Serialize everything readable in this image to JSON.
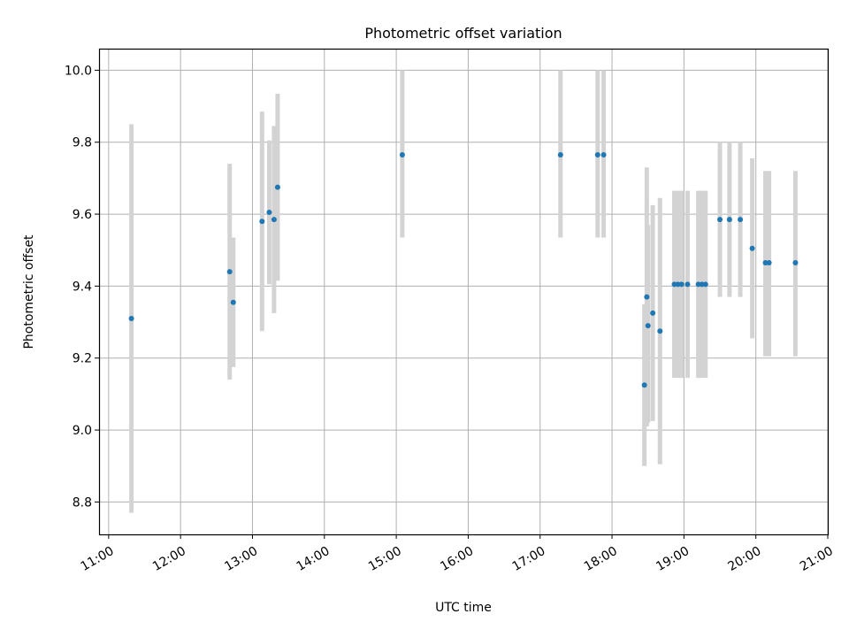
{
  "chart_data": {
    "type": "scatter",
    "title": "Photometric offset variation",
    "xlabel": "UTC time",
    "ylabel": "Photometric offset",
    "x_ticks": [
      "11:00",
      "12:00",
      "13:00",
      "14:00",
      "15:00",
      "16:00",
      "17:00",
      "18:00",
      "19:00",
      "20:00",
      "21:00"
    ],
    "y_ticks": [
      "8.8",
      "9.0",
      "9.2",
      "9.4",
      "9.6",
      "9.8",
      "10.0"
    ],
    "xlim": [
      "10:52",
      "21:00"
    ],
    "ylim": [
      8.71,
      10.06
    ],
    "grid": true,
    "legend": "none",
    "colors": {
      "point": "#1f77b4",
      "errorbar": "#d3d3d3",
      "grid": "#b0b0b0"
    },
    "series": [
      {
        "points": [
          {
            "x": "11:19",
            "y": 9.31,
            "low": 8.77,
            "high": 9.85
          },
          {
            "x": "12:41",
            "y": 9.44,
            "low": 9.14,
            "high": 9.74
          },
          {
            "x": "12:44",
            "y": 9.355,
            "low": 9.175,
            "high": 9.535
          },
          {
            "x": "13:08",
            "y": 9.58,
            "low": 9.275,
            "high": 9.885
          },
          {
            "x": "13:14",
            "y": 9.605,
            "low": 9.405,
            "high": 9.805
          },
          {
            "x": "13:18",
            "y": 9.585,
            "low": 9.325,
            "high": 9.845
          },
          {
            "x": "13:21",
            "y": 9.675,
            "low": 9.415,
            "high": 9.935
          },
          {
            "x": "15:05",
            "y": 9.765,
            "low": 9.535,
            "high": 10.0
          },
          {
            "x": "17:17",
            "y": 9.765,
            "low": 9.535,
            "high": 10.0
          },
          {
            "x": "17:48",
            "y": 9.765,
            "low": 9.535,
            "high": 10.0
          },
          {
            "x": "17:53",
            "y": 9.765,
            "low": 9.535,
            "high": 10.0
          },
          {
            "x": "18:27",
            "y": 9.125,
            "low": 8.9,
            "high": 9.35
          },
          {
            "x": "18:29",
            "y": 9.37,
            "low": 9.01,
            "high": 9.73
          },
          {
            "x": "18:30",
            "y": 9.29,
            "low": 9.02,
            "high": 9.57
          },
          {
            "x": "18:34",
            "y": 9.325,
            "low": 9.025,
            "high": 9.625
          },
          {
            "x": "18:40",
            "y": 9.275,
            "low": 8.905,
            "high": 9.645
          },
          {
            "x": "18:52",
            "y": 9.405,
            "low": 9.145,
            "high": 9.665
          },
          {
            "x": "18:55",
            "y": 9.405,
            "low": 9.145,
            "high": 9.665
          },
          {
            "x": "18:58",
            "y": 9.405,
            "low": 9.145,
            "high": 9.665
          },
          {
            "x": "19:03",
            "y": 9.405,
            "low": 9.145,
            "high": 9.665
          },
          {
            "x": "19:12",
            "y": 9.405,
            "low": 9.145,
            "high": 9.665
          },
          {
            "x": "19:15",
            "y": 9.405,
            "low": 9.145,
            "high": 9.665
          },
          {
            "x": "19:18",
            "y": 9.405,
            "low": 9.145,
            "high": 9.665
          },
          {
            "x": "19:30",
            "y": 9.585,
            "low": 9.37,
            "high": 9.8
          },
          {
            "x": "19:38",
            "y": 9.585,
            "low": 9.37,
            "high": 9.8
          },
          {
            "x": "19:47",
            "y": 9.585,
            "low": 9.37,
            "high": 9.8
          },
          {
            "x": "19:57",
            "y": 9.505,
            "low": 9.255,
            "high": 9.755
          },
          {
            "x": "20:08",
            "y": 9.465,
            "low": 9.205,
            "high": 9.72
          },
          {
            "x": "20:11",
            "y": 9.465,
            "low": 9.205,
            "high": 9.72
          },
          {
            "x": "20:33",
            "y": 9.465,
            "low": 9.205,
            "high": 9.72
          }
        ]
      }
    ]
  }
}
